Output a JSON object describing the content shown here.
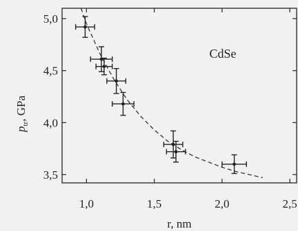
{
  "chart_data": {
    "type": "scatter",
    "title": "",
    "xlabel": "r, nm",
    "ylabel": {
      "main": "p",
      "sub": "tr",
      "unit": ", GPa"
    },
    "xlim": [
      0.82,
      2.55
    ],
    "ylim": [
      3.42,
      5.1
    ],
    "xticks": [
      1.0,
      1.5,
      2.0,
      2.5
    ],
    "yticks": [
      3.5,
      4.0,
      4.5,
      5.0
    ],
    "xtick_labels": [
      "1,0",
      "1,5",
      "2,0",
      "2,5"
    ],
    "ytick_labels": [
      "3,5",
      "4,0",
      "4,5",
      "5,0"
    ],
    "annotation": "CdSe",
    "grid": false,
    "series": [
      {
        "marker": "point with x/y error bars",
        "points": [
          {
            "x": 0.99,
            "y": 4.92,
            "xerr": 0.07,
            "yerr": 0.1
          },
          {
            "x": 1.11,
            "y": 4.61,
            "xerr": 0.08,
            "yerr": 0.12
          },
          {
            "x": 1.13,
            "y": 4.54,
            "xerr": 0.06,
            "yerr": 0.08
          },
          {
            "x": 1.22,
            "y": 4.4,
            "xerr": 0.07,
            "yerr": 0.12
          },
          {
            "x": 1.27,
            "y": 4.18,
            "xerr": 0.08,
            "yerr": 0.11
          },
          {
            "x": 1.64,
            "y": 3.79,
            "xerr": 0.07,
            "yerr": 0.13
          },
          {
            "x": 1.66,
            "y": 3.72,
            "xerr": 0.07,
            "yerr": 0.1
          },
          {
            "x": 2.09,
            "y": 3.6,
            "xerr": 0.09,
            "yerr": 0.09
          }
        ]
      },
      {
        "line_style": "dashed",
        "curve": [
          [
            0.96,
            5.1
          ],
          [
            1.0,
            4.95
          ],
          [
            1.1,
            4.66
          ],
          [
            1.2,
            4.42
          ],
          [
            1.3,
            4.22
          ],
          [
            1.4,
            4.06
          ],
          [
            1.5,
            3.93
          ],
          [
            1.6,
            3.82
          ],
          [
            1.7,
            3.74
          ],
          [
            1.8,
            3.67
          ],
          [
            1.9,
            3.62
          ],
          [
            2.0,
            3.57
          ],
          [
            2.1,
            3.53
          ],
          [
            2.2,
            3.5
          ],
          [
            2.3,
            3.47
          ]
        ]
      }
    ]
  }
}
